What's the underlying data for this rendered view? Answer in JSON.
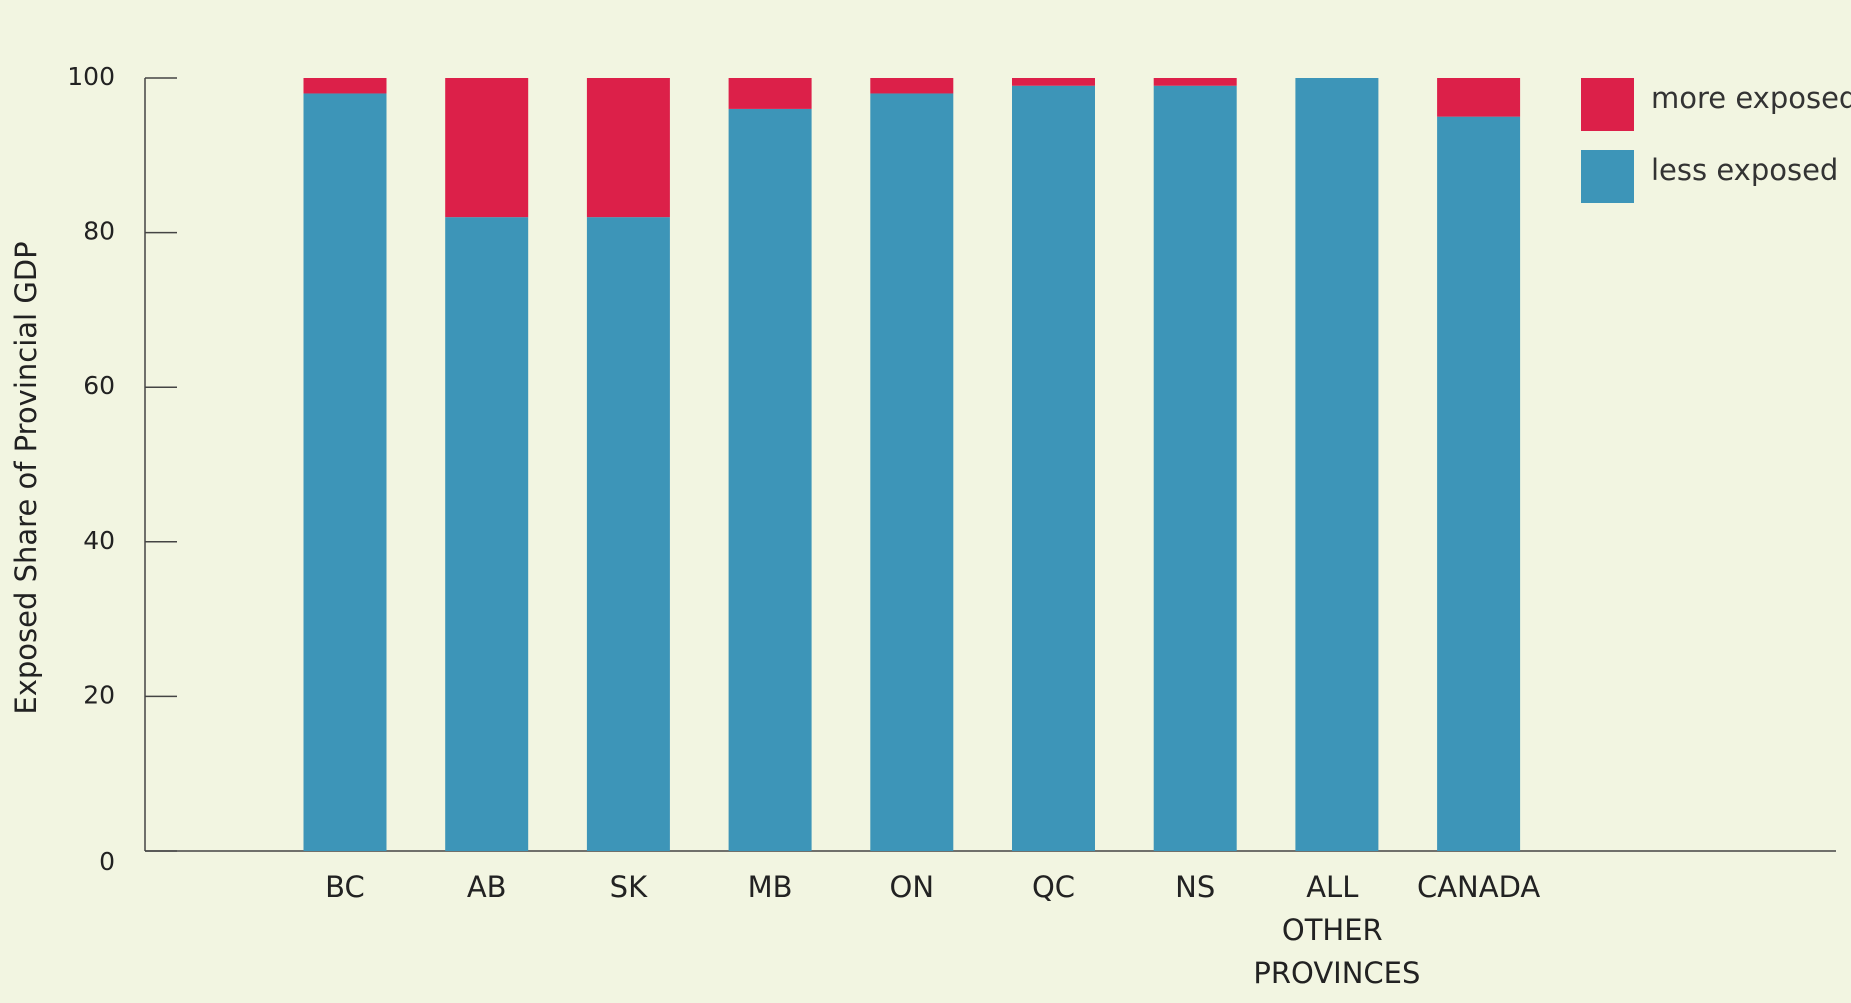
{
  "chart_data": {
    "type": "stacked_bar",
    "categories": [
      "BC",
      "AB",
      "SK",
      "MB",
      "ON",
      "QC",
      "NS",
      "ALL OTHER PROVINCES",
      "CANADA"
    ],
    "series": [
      {
        "name": "less exposed",
        "color": "#3d95b8",
        "values": [
          98,
          82,
          82,
          96,
          98,
          99,
          99,
          100,
          95
        ]
      },
      {
        "name": "more exposed",
        "color": "#dc2049",
        "values": [
          2,
          18,
          18,
          4,
          2,
          1,
          1,
          0,
          5
        ]
      }
    ],
    "ylabel": "Exposed Share of Provincial GDP",
    "ylim": [
      0,
      100
    ],
    "yticks": [
      0,
      20,
      40,
      60,
      80,
      100
    ],
    "legend": "upper right"
  }
}
